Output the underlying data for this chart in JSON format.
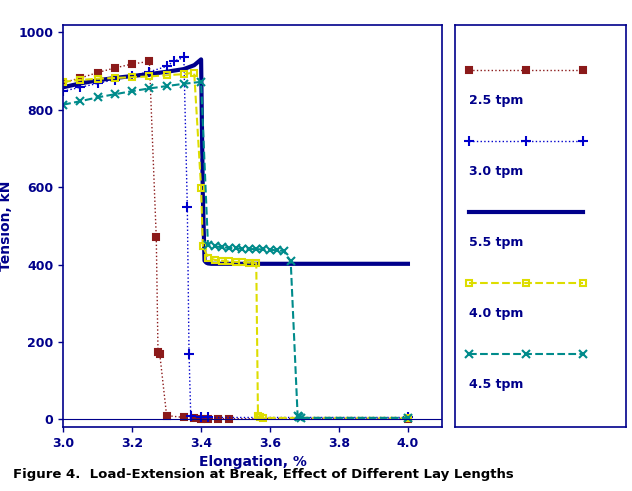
{
  "title": "Figure 4.  Load-Extension at Break, Effect of Different Lay Lengths",
  "xlabel": "Elongation, %",
  "ylabel": "Tension, kN",
  "xlim": [
    3.0,
    4.1
  ],
  "ylim": [
    -20,
    1020
  ],
  "xticks": [
    3.0,
    3.2,
    3.4,
    3.6,
    3.8,
    4.0
  ],
  "yticks": [
    0,
    200,
    400,
    600,
    800,
    1000
  ],
  "series": [
    {
      "label": "2.5 tpm",
      "color": "#8B1A1A",
      "linestyle": "dotted",
      "marker": "s",
      "markersize": 5,
      "markerfacecolor": "#8B1A1A",
      "linewidth": 1.0,
      "x": [
        3.0,
        3.05,
        3.1,
        3.15,
        3.2,
        3.25,
        3.27,
        3.275,
        3.28,
        3.3,
        3.35,
        3.38,
        3.4,
        3.42,
        3.45,
        3.48,
        4.0
      ],
      "y": [
        870,
        882,
        896,
        908,
        918,
        925,
        470,
        175,
        170,
        10,
        5,
        3,
        2,
        2,
        2,
        2,
        2
      ]
    },
    {
      "label": "3.0 tpm",
      "color": "#0000CC",
      "linestyle": "dotted",
      "marker": "+",
      "markersize": 7,
      "markerfacecolor": "#0000CC",
      "linewidth": 1.0,
      "x": [
        3.0,
        3.05,
        3.1,
        3.15,
        3.2,
        3.25,
        3.3,
        3.32,
        3.35,
        3.36,
        3.365,
        3.37,
        3.4,
        3.42,
        4.0
      ],
      "y": [
        848,
        858,
        868,
        878,
        888,
        898,
        912,
        925,
        935,
        550,
        170,
        10,
        5,
        5,
        5
      ]
    },
    {
      "label": "5.5 tpm",
      "color": "#00008B",
      "linestyle": "solid",
      "marker": null,
      "markersize": 0,
      "markerfacecolor": "#00008B",
      "linewidth": 3.0,
      "x": [
        3.0,
        3.05,
        3.1,
        3.15,
        3.2,
        3.25,
        3.3,
        3.35,
        3.38,
        3.4,
        3.405,
        3.41,
        3.415,
        3.42,
        3.43,
        3.5,
        4.0
      ],
      "y": [
        858,
        868,
        876,
        882,
        887,
        892,
        898,
        905,
        915,
        930,
        580,
        410,
        405,
        403,
        402,
        402,
        402
      ]
    },
    {
      "label": "4.0 tpm",
      "color": "#DDDD00",
      "linestyle": "dashed",
      "marker": "s",
      "markersize": 5,
      "markerfacecolor": "none",
      "linewidth": 1.5,
      "x": [
        3.0,
        3.05,
        3.1,
        3.15,
        3.2,
        3.25,
        3.3,
        3.35,
        3.38,
        3.4,
        3.405,
        3.42,
        3.44,
        3.46,
        3.48,
        3.5,
        3.52,
        3.54,
        3.56,
        3.565,
        3.57,
        3.58,
        4.0
      ],
      "y": [
        872,
        877,
        880,
        882,
        884,
        886,
        889,
        892,
        896,
        598,
        448,
        418,
        412,
        410,
        408,
        407,
        406,
        405,
        404,
        10,
        5,
        4,
        4
      ]
    },
    {
      "label": "4.5 tpm",
      "color": "#008B8B",
      "linestyle": "dashed",
      "marker": "x",
      "markersize": 6,
      "markerfacecolor": "none",
      "linewidth": 1.5,
      "x": [
        3.0,
        3.05,
        3.1,
        3.15,
        3.2,
        3.25,
        3.3,
        3.35,
        3.4,
        3.42,
        3.44,
        3.46,
        3.48,
        3.5,
        3.52,
        3.54,
        3.56,
        3.58,
        3.6,
        3.62,
        3.64,
        3.66,
        3.68,
        3.685,
        3.69,
        4.0
      ],
      "y": [
        813,
        822,
        832,
        840,
        848,
        855,
        861,
        867,
        872,
        450,
        447,
        445,
        443,
        442,
        441,
        440,
        440,
        439,
        438,
        437,
        435,
        408,
        10,
        5,
        4,
        4
      ]
    }
  ],
  "fig_width": 6.32,
  "fig_height": 4.91,
  "background_color": "#FFFFFF",
  "axis_color": "#00008B",
  "text_color": "#00008B"
}
